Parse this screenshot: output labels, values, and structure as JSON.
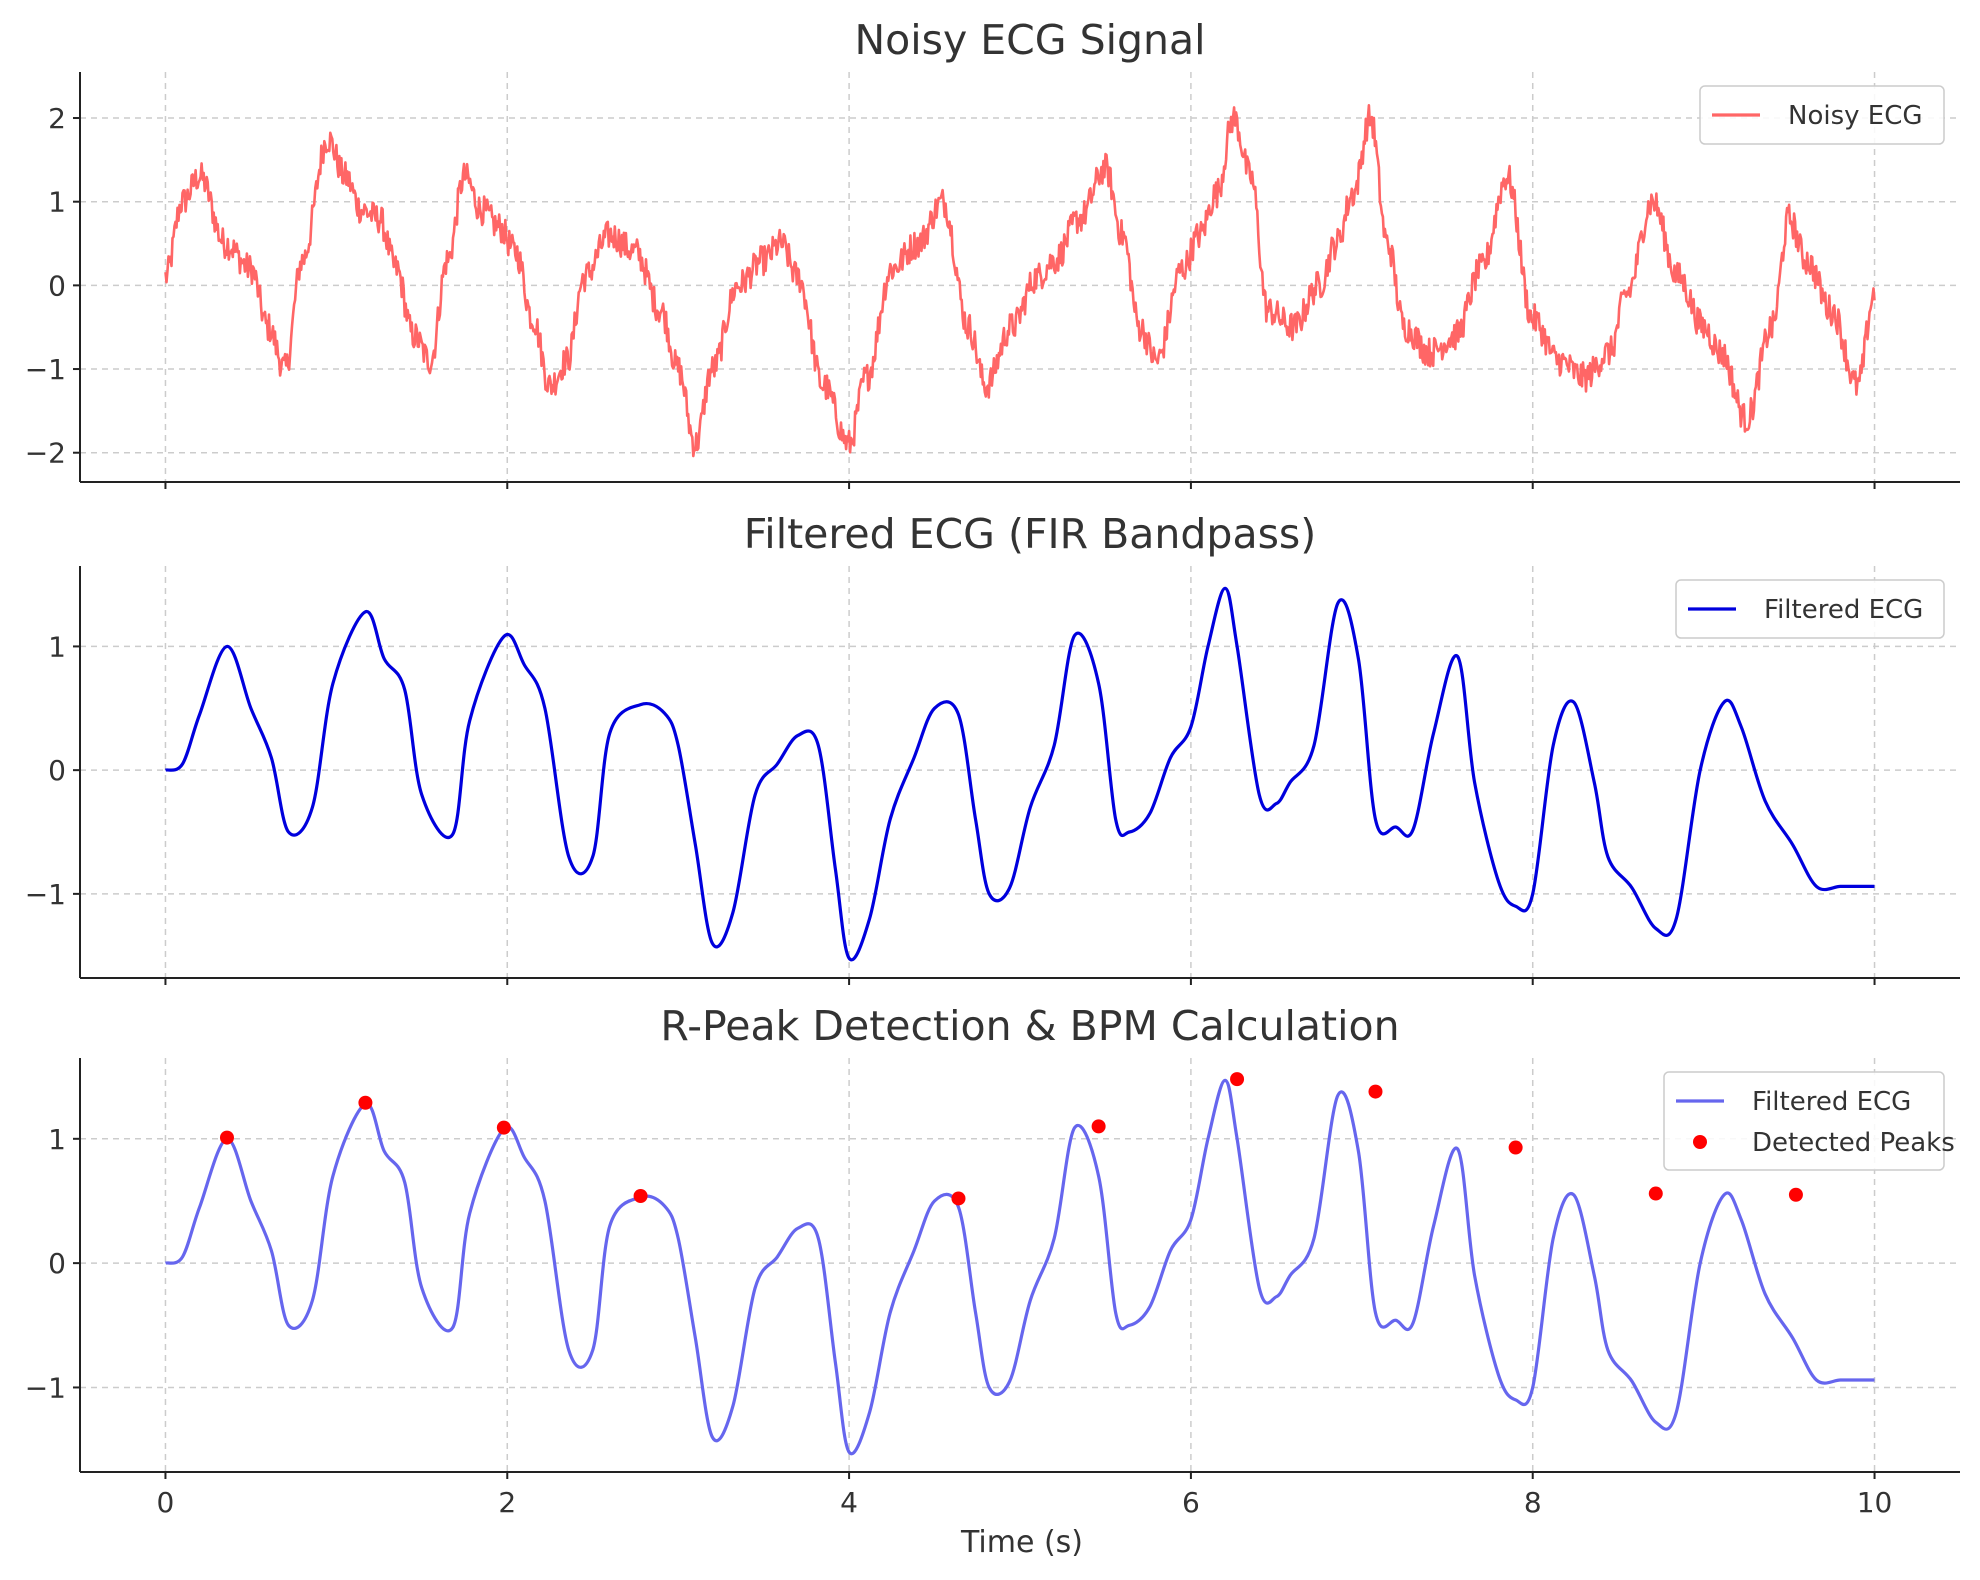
{
  "chart_data": [
    {
      "type": "line",
      "title": "Noisy ECG Signal",
      "xlabel": "",
      "ylabel": "",
      "xlim": [
        -0.5,
        10.5
      ],
      "ylim": [
        -2.35,
        2.55
      ],
      "xticks": [
        0,
        2,
        4,
        6,
        8,
        10
      ],
      "xtick_labels": [],
      "yticks": [
        -2,
        -1,
        0,
        1,
        2
      ],
      "ytick_labels": [
        "−2",
        "−1",
        "0",
        "1",
        "2"
      ],
      "grid": true,
      "legend_position": "top-right",
      "series": [
        {
          "name": "Noisy ECG",
          "color": "#ff6666",
          "noise": 0.18,
          "x": [
            0,
            0.1,
            0.2,
            0.35,
            0.5,
            0.6,
            0.7,
            0.8,
            0.95,
            1.05,
            1.15,
            1.25,
            1.35,
            1.45,
            1.55,
            1.65,
            1.75,
            1.85,
            1.95,
            2.05,
            2.15,
            2.25,
            2.35,
            2.45,
            2.6,
            2.75,
            2.9,
            3.0,
            3.1,
            3.2,
            3.35,
            3.5,
            3.6,
            3.7,
            3.85,
            4.0,
            4.1,
            4.25,
            4.4,
            4.55,
            4.7,
            4.8,
            4.95,
            5.1,
            5.2,
            5.35,
            5.5,
            5.6,
            5.7,
            5.8,
            5.95,
            6.05,
            6.15,
            6.25,
            6.35,
            6.45,
            6.6,
            6.75,
            6.85,
            6.95,
            7.05,
            7.15,
            7.25,
            7.4,
            7.55,
            7.7,
            7.85,
            8.0,
            8.15,
            8.3,
            8.45,
            8.55,
            8.7,
            8.85,
            9.0,
            9.1,
            9.25,
            9.4,
            9.5,
            9.6,
            9.75,
            9.9,
            10.0
          ],
          "y": [
            0.1,
            1.0,
            1.3,
            0.5,
            0.2,
            -0.5,
            -1.0,
            0.3,
            1.75,
            1.3,
            0.9,
            0.8,
            0.2,
            -0.6,
            -0.9,
            0.3,
            1.3,
            0.9,
            0.7,
            0.4,
            -0.4,
            -1.2,
            -0.9,
            0.1,
            0.6,
            0.4,
            -0.3,
            -1.0,
            -1.9,
            -1.0,
            0.0,
            0.3,
            0.5,
            0.1,
            -1.2,
            -1.9,
            -1.1,
            0.2,
            0.5,
            1.0,
            -0.5,
            -1.2,
            -0.5,
            0.1,
            0.3,
            0.8,
            1.4,
            0.6,
            -0.5,
            -0.9,
            0.2,
            0.6,
            1.1,
            2.0,
            1.3,
            -0.3,
            -0.5,
            0.0,
            0.5,
            1.1,
            2.0,
            0.5,
            -0.5,
            -0.8,
            -0.6,
            0.2,
            1.3,
            -0.4,
            -0.9,
            -1.1,
            -0.8,
            -0.1,
            1.0,
            0.1,
            -0.5,
            -0.8,
            -1.6,
            -0.5,
            0.8,
            0.3,
            -0.3,
            -1.2,
            -0.1
          ]
        }
      ]
    },
    {
      "type": "line",
      "title": "Filtered ECG (FIR Bandpass)",
      "xlabel": "",
      "ylabel": "",
      "xlim": [
        -0.5,
        10.5
      ],
      "ylim": [
        -1.68,
        1.65
      ],
      "xticks": [
        0,
        2,
        4,
        6,
        8,
        10
      ],
      "xtick_labels": [],
      "yticks": [
        -1,
        0,
        1
      ],
      "ytick_labels": [
        "−1",
        "0",
        "1"
      ],
      "grid": true,
      "legend_position": "top-right",
      "series": [
        {
          "name": "Filtered ECG",
          "color": "#0000dd",
          "x": [
            0,
            0.1,
            0.2,
            0.36,
            0.5,
            0.62,
            0.72,
            0.86,
            0.98,
            1.17,
            1.28,
            1.4,
            1.5,
            1.68,
            1.78,
            1.98,
            2.1,
            2.22,
            2.36,
            2.5,
            2.6,
            2.78,
            2.92,
            3.0,
            3.1,
            3.2,
            3.32,
            3.45,
            3.58,
            3.7,
            3.82,
            3.92,
            4.0,
            4.12,
            4.24,
            4.38,
            4.5,
            4.64,
            4.74,
            4.82,
            4.94,
            5.06,
            5.2,
            5.32,
            5.46,
            5.56,
            5.64,
            5.76,
            5.88,
            6.0,
            6.1,
            6.2,
            6.27,
            6.4,
            6.5,
            6.58,
            6.72,
            6.86,
            6.98,
            7.08,
            7.2,
            7.3,
            7.42,
            7.56,
            7.66,
            7.8,
            7.9,
            8.0,
            8.12,
            8.24,
            8.36,
            8.44,
            8.58,
            8.72,
            8.84,
            8.98,
            9.12,
            9.22,
            9.36,
            9.52,
            9.66,
            9.8,
            9.92,
            10.0
          ],
          "y": [
            0.0,
            0.05,
            0.45,
            1.0,
            0.5,
            0.1,
            -0.5,
            -0.3,
            0.7,
            1.28,
            0.9,
            0.65,
            -0.2,
            -0.52,
            0.4,
            1.08,
            0.85,
            0.5,
            -0.7,
            -0.7,
            0.3,
            0.53,
            0.46,
            0.2,
            -0.6,
            -1.4,
            -1.15,
            -0.2,
            0.05,
            0.28,
            0.2,
            -0.8,
            -1.52,
            -1.2,
            -0.4,
            0.1,
            0.5,
            0.45,
            -0.4,
            -1.0,
            -0.95,
            -0.3,
            0.2,
            1.09,
            0.7,
            -0.4,
            -0.5,
            -0.35,
            0.1,
            0.35,
            1.0,
            1.47,
            1.0,
            -0.2,
            -0.27,
            -0.1,
            0.2,
            1.35,
            0.9,
            -0.4,
            -0.46,
            -0.48,
            0.3,
            0.92,
            -0.1,
            -0.9,
            -1.1,
            -1.0,
            0.2,
            0.55,
            -0.1,
            -0.7,
            -0.95,
            -1.28,
            -1.2,
            0.0,
            0.55,
            0.35,
            -0.25,
            -0.6,
            -0.94,
            -0.94,
            -0.94,
            -0.94
          ]
        }
      ]
    },
    {
      "type": "line",
      "title": "R-Peak Detection & BPM Calculation",
      "xlabel": "Time (s)",
      "ylabel": "",
      "xlim": [
        -0.5,
        10.5
      ],
      "ylim": [
        -1.68,
        1.65
      ],
      "xticks": [
        0,
        2,
        4,
        6,
        8,
        10
      ],
      "xtick_labels": [
        "0",
        "2",
        "4",
        "6",
        "8",
        "10"
      ],
      "yticks": [
        -1,
        0,
        1
      ],
      "ytick_labels": [
        "−1",
        "0",
        "1"
      ],
      "grid": true,
      "legend_position": "top-right",
      "series": [
        {
          "name": "Filtered ECG",
          "color": "#6666ee",
          "x": [
            0,
            0.1,
            0.2,
            0.36,
            0.5,
            0.62,
            0.72,
            0.86,
            0.98,
            1.17,
            1.28,
            1.4,
            1.5,
            1.68,
            1.78,
            1.98,
            2.1,
            2.22,
            2.36,
            2.5,
            2.6,
            2.78,
            2.92,
            3.0,
            3.1,
            3.2,
            3.32,
            3.45,
            3.58,
            3.7,
            3.82,
            3.92,
            4.0,
            4.12,
            4.24,
            4.38,
            4.5,
            4.64,
            4.74,
            4.82,
            4.94,
            5.06,
            5.2,
            5.32,
            5.46,
            5.56,
            5.64,
            5.76,
            5.88,
            6.0,
            6.1,
            6.2,
            6.27,
            6.4,
            6.5,
            6.58,
            6.72,
            6.86,
            6.98,
            7.08,
            7.2,
            7.3,
            7.42,
            7.56,
            7.66,
            7.8,
            7.9,
            8.0,
            8.12,
            8.24,
            8.36,
            8.44,
            8.58,
            8.72,
            8.84,
            8.98,
            9.12,
            9.22,
            9.36,
            9.52,
            9.66,
            9.8,
            9.92,
            10.0
          ],
          "y": [
            0.0,
            0.05,
            0.45,
            1.0,
            0.5,
            0.1,
            -0.5,
            -0.3,
            0.7,
            1.28,
            0.9,
            0.65,
            -0.2,
            -0.52,
            0.4,
            1.08,
            0.85,
            0.5,
            -0.7,
            -0.7,
            0.3,
            0.53,
            0.46,
            0.2,
            -0.6,
            -1.4,
            -1.15,
            -0.2,
            0.05,
            0.28,
            0.2,
            -0.8,
            -1.52,
            -1.2,
            -0.4,
            0.1,
            0.5,
            0.45,
            -0.4,
            -1.0,
            -0.95,
            -0.3,
            0.2,
            1.09,
            0.7,
            -0.4,
            -0.5,
            -0.35,
            0.1,
            0.35,
            1.0,
            1.47,
            1.0,
            -0.2,
            -0.27,
            -0.1,
            0.2,
            1.35,
            0.9,
            -0.4,
            -0.46,
            -0.48,
            0.3,
            0.92,
            -0.1,
            -0.9,
            -1.1,
            -1.0,
            0.2,
            0.55,
            -0.1,
            -0.7,
            -0.95,
            -1.28,
            -1.2,
            0.0,
            0.55,
            0.35,
            -0.25,
            -0.6,
            -0.94,
            -0.94,
            -0.94,
            -0.94
          ]
        },
        {
          "name": "Detected Peaks",
          "type": "scatter",
          "color": "#ff0000",
          "x": [
            0.36,
            1.17,
            1.98,
            2.78,
            4.64,
            5.46,
            6.27,
            7.08,
            7.9,
            8.72,
            9.54
          ],
          "y": [
            1.01,
            1.29,
            1.09,
            0.54,
            0.52,
            1.1,
            1.48,
            1.38,
            0.93,
            0.56,
            0.55
          ]
        }
      ]
    }
  ]
}
